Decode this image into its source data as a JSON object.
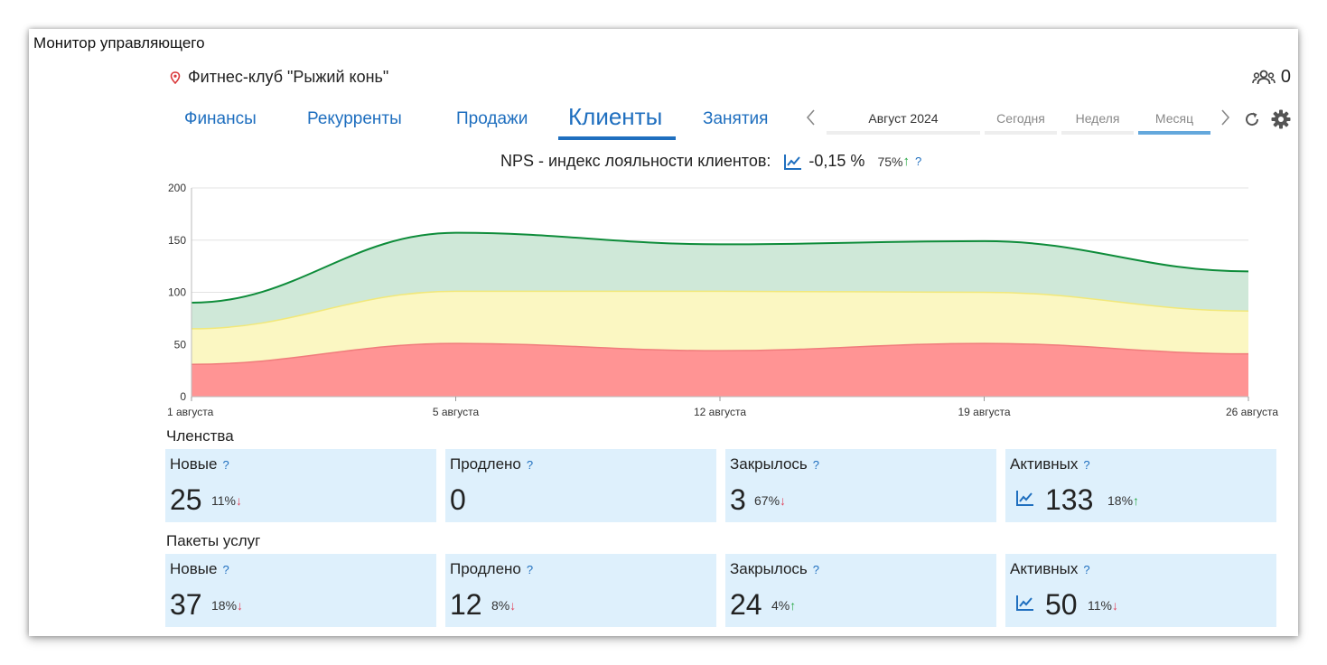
{
  "window": {
    "title": "Монитор управляющего"
  },
  "header": {
    "location": "Фитнес-клуб \"Рыжий конь\"",
    "users_count": "0"
  },
  "tabs": [
    {
      "label": "Финансы"
    },
    {
      "label": "Рекурренты"
    },
    {
      "label": "Продажи"
    },
    {
      "label": "Клиенты",
      "active": true
    },
    {
      "label": "Занятия"
    }
  ],
  "period": {
    "current": "Август 2024",
    "today": "Сегодня",
    "week": "Неделя",
    "month": "Месяц",
    "selected": "Месяц"
  },
  "nps": {
    "label": "NPS - индекс лояльности клиентов:",
    "value": "-0,15 %",
    "change": "75%",
    "change_dir": "↑",
    "help": "?"
  },
  "chart_data": {
    "type": "area",
    "x": [
      "1 августа",
      "5 августа",
      "12 августа",
      "19 августа",
      "26 августа"
    ],
    "x_ticks": [
      "1 августа",
      "5 августа",
      "12 августа",
      "19 августа",
      "26 августа"
    ],
    "ylim": [
      0,
      200
    ],
    "y_ticks": [
      "0",
      "50",
      "100",
      "150",
      "200"
    ],
    "grid": true,
    "series": [
      {
        "values": [
          90,
          157,
          146,
          149,
          120
        ],
        "color": "#0e8c3a",
        "fill": "#cfe8d8"
      },
      {
        "values": [
          65,
          101,
          101,
          100,
          82
        ],
        "color": "#f1e87a",
        "fill": "#fbf7c2"
      },
      {
        "values": [
          31,
          51,
          44,
          51,
          41
        ],
        "color": "#f07c7c",
        "fill": "#ff9494"
      }
    ]
  },
  "memberships": {
    "title": "Членства",
    "cards": [
      {
        "label": "Новые",
        "help": "?",
        "value": "25",
        "change": "11%",
        "dir": "↓"
      },
      {
        "label": "Продлено",
        "help": "?",
        "value": "0",
        "change": "",
        "dir": ""
      },
      {
        "label": "Закрылось",
        "help": "?",
        "value": "3",
        "change": "67%",
        "dir": "↓"
      },
      {
        "label": "Активных",
        "help": "?",
        "value": "133",
        "change": "18%",
        "dir": "↑"
      }
    ]
  },
  "packages": {
    "title": "Пакеты услуг",
    "cards": [
      {
        "label": "Новые",
        "help": "?",
        "value": "37",
        "change": "18%",
        "dir": "↓"
      },
      {
        "label": "Продлено",
        "help": "?",
        "value": "12",
        "change": "8%",
        "dir": "↓"
      },
      {
        "label": "Закрылось",
        "help": "?",
        "value": "24",
        "change": "4%",
        "dir": "↑"
      },
      {
        "label": "Активных",
        "help": "?",
        "value": "50",
        "change": "11%",
        "dir": "↓"
      }
    ]
  },
  "icons": {
    "location": "map-pin-icon",
    "users": "users-icon",
    "refresh": "refresh-icon",
    "settings": "gear-icon",
    "trend": "chart-line-icon"
  },
  "colors": {
    "accent": "#1f6fbf",
    "up": "#27a844",
    "down": "#e0435b",
    "card_bg": "#def0fc"
  }
}
